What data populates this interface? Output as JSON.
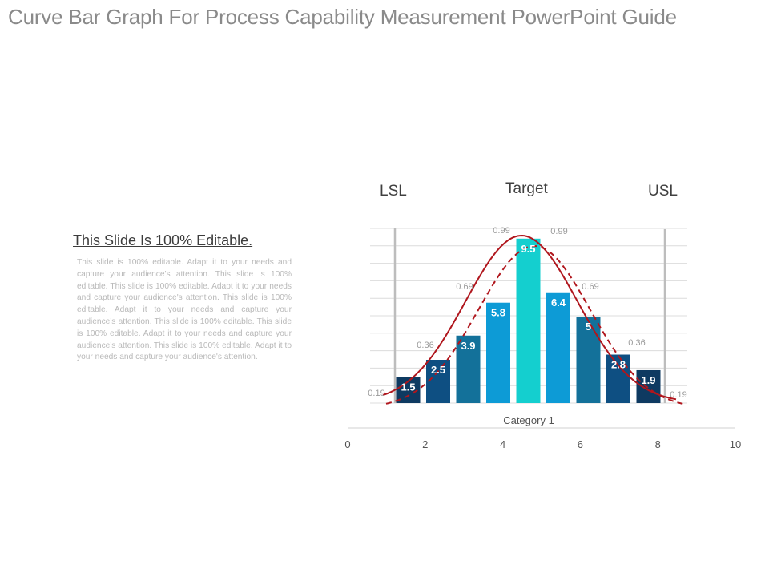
{
  "slide": {
    "title": "Curve Bar Graph For Process Capability Measurement PowerPoint Guide",
    "side_heading": "This Slide Is 100% Editable.",
    "side_body": "This slide is 100% editable. Adapt it to your needs and capture your audience's attention. This slide is 100% editable. This slide is 100% editable. Adapt it to your needs and capture your audience's attention. This slide is 100% editable. Adapt it to your needs and capture your audience's attention. This slide is 100% editable. This slide is 100% editable. Adapt it to your needs and capture your audience's attention. This slide is 100% editable. Adapt it to your needs and capture your audience's attention."
  },
  "spec_labels": {
    "lsl": "LSL",
    "target": "Target",
    "usl": "USL"
  },
  "chart_data": {
    "type": "bar",
    "values": [
      1.5,
      2.5,
      3.9,
      5.8,
      9.5,
      6.4,
      5,
      2.8,
      1.9
    ],
    "value_labels": [
      "1.5",
      "2.5",
      "3.9",
      "5.8",
      "9.5",
      "6.4",
      "5",
      "2.8",
      "1.9"
    ],
    "bar_colors": [
      "#0e3a61",
      "#0e4f82",
      "#13719a",
      "#0d9bd6",
      "#14cfcf",
      "#0d9bd6",
      "#13719a",
      "#0e4f82",
      "#0e3a61"
    ],
    "category_label": "Category 1",
    "x_ticks": [
      "0",
      "2",
      "4",
      "6",
      "8",
      "10"
    ],
    "xlim": [
      0,
      10
    ],
    "curve_values": [
      0.19,
      0.36,
      0.69,
      0.99,
      0.99,
      0.69,
      0.36,
      0.19
    ],
    "curve_labels": [
      "0.19",
      "0.36",
      "0.69",
      "0.99",
      "0.99",
      "0.69",
      "0.36",
      "0.19"
    ],
    "curve_color": "#b0161d",
    "grid": true,
    "limit_line_color": "#bdbdbd"
  }
}
